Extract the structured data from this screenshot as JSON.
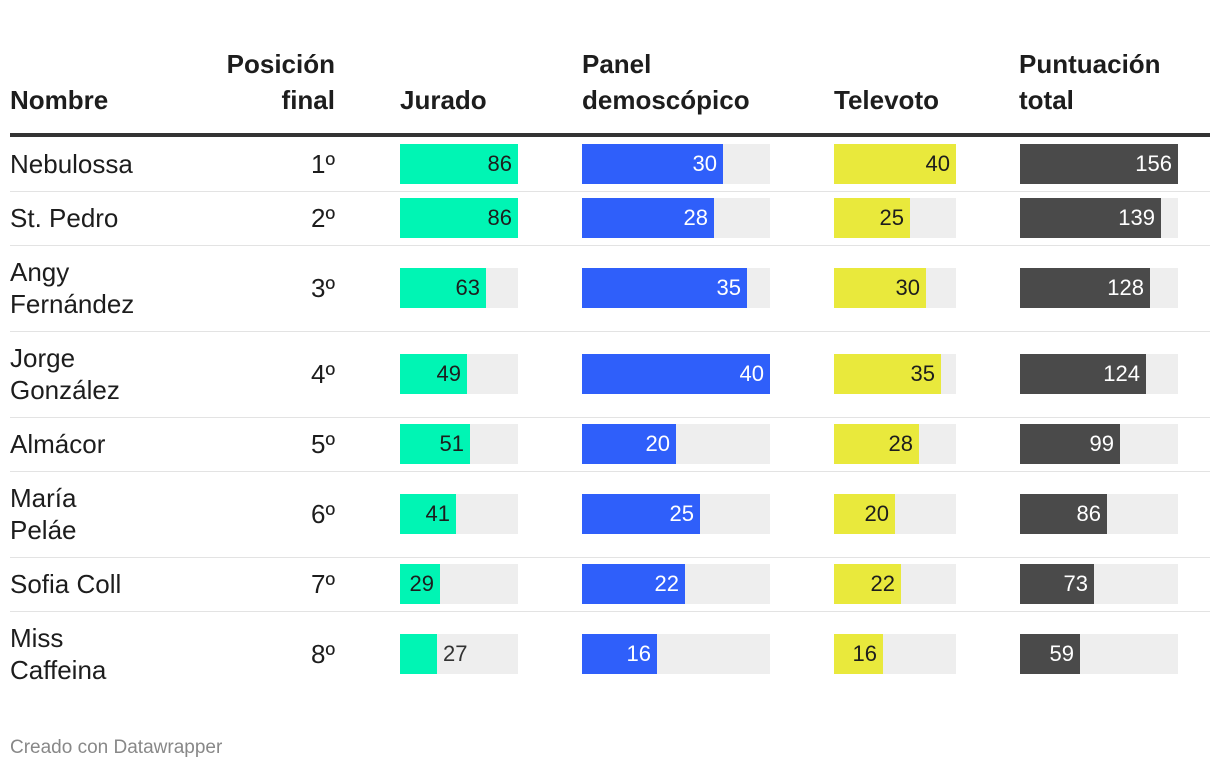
{
  "chart_data": {
    "type": "table",
    "headers": {
      "name": [
        "Nombre"
      ],
      "position": [
        "Posición",
        "final"
      ],
      "jurado": [
        "Jurado"
      ],
      "panel": [
        "Panel",
        "demoscópico"
      ],
      "televoto": [
        "Televoto"
      ],
      "total": [
        "Puntuación",
        "total"
      ]
    },
    "columns": [
      {
        "key": "jurado",
        "max": 86,
        "color": "#00f5b4",
        "label_color_inside": "#1d1d1d",
        "label_color_outside": "#333333"
      },
      {
        "key": "panel",
        "max": 40,
        "color": "#2f5ffa",
        "label_color_inside": "#ffffff",
        "label_color_outside": "#333333"
      },
      {
        "key": "televoto",
        "max": 40,
        "color": "#e9e93c",
        "label_color_inside": "#1d1d1d",
        "label_color_outside": "#333333"
      },
      {
        "key": "total",
        "max": 156,
        "color": "#4a4a4a",
        "label_color_inside": "#ffffff",
        "label_color_outside": "#333333"
      }
    ],
    "rows": [
      {
        "name": [
          "Nebulossa"
        ],
        "position": "1º",
        "jurado": 86,
        "panel": 30,
        "televoto": 40,
        "total": 156
      },
      {
        "name": [
          "St. Pedro"
        ],
        "position": "2º",
        "jurado": 86,
        "panel": 28,
        "televoto": 25,
        "total": 139
      },
      {
        "name": [
          "Angy",
          "Fernández"
        ],
        "position": "3º",
        "jurado": 63,
        "panel": 35,
        "televoto": 30,
        "total": 128
      },
      {
        "name": [
          "Jorge",
          "González"
        ],
        "position": "4º",
        "jurado": 49,
        "panel": 40,
        "televoto": 35,
        "total": 124
      },
      {
        "name": [
          "Almácor"
        ],
        "position": "5º",
        "jurado": 51,
        "panel": 20,
        "televoto": 28,
        "total": 99
      },
      {
        "name": [
          "María",
          "Peláe"
        ],
        "position": "6º",
        "jurado": 41,
        "panel": 25,
        "televoto": 20,
        "total": 86
      },
      {
        "name": [
          "Sofia Coll"
        ],
        "position": "7º",
        "jurado": 29,
        "panel": 22,
        "televoto": 22,
        "total": 73
      },
      {
        "name": [
          "Miss",
          "Caffeina"
        ],
        "position": "8º",
        "jurado": 27,
        "panel": 16,
        "televoto": 16,
        "total": 59
      }
    ]
  },
  "footer": "Creado con Datawrapper"
}
